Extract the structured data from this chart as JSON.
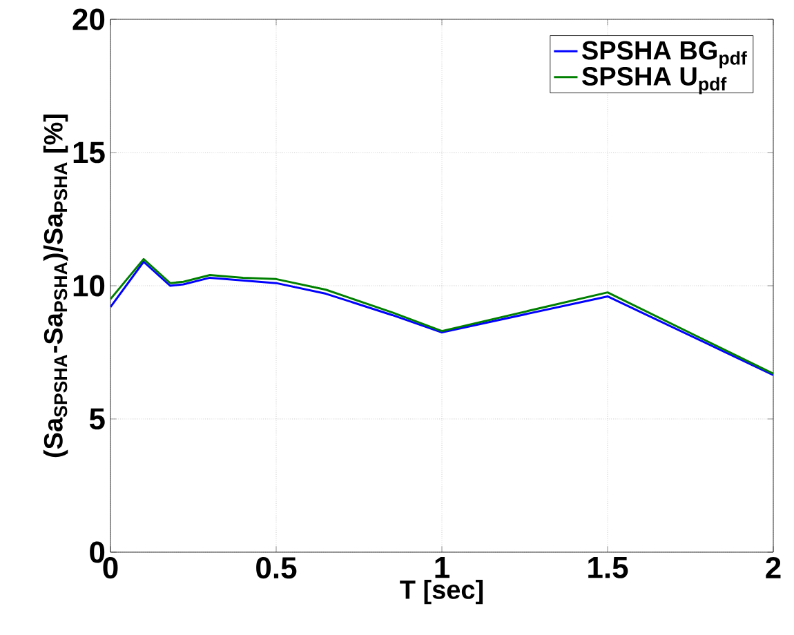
{
  "chart_data": {
    "type": "line",
    "xlabel": "T [sec]",
    "ylabel": "(Sa$_{SPSHA}$-Sa$_{PSHA}$)/Sa$_{PSHA}$ [%]",
    "xlim": [
      0,
      2
    ],
    "ylim": [
      0,
      20
    ],
    "xticks": [
      0,
      0.5,
      1,
      1.5,
      2
    ],
    "yticks": [
      0,
      5,
      10,
      15,
      20
    ],
    "grid": true,
    "legend": "top right",
    "series": [
      {
        "name": "SPSHA BG$_{pdf}$",
        "color": "#0000ff",
        "x": [
          0,
          0.1,
          0.18,
          0.22,
          0.3,
          0.4,
          0.5,
          0.65,
          0.85,
          1.0,
          1.5,
          2.0
        ],
        "values": [
          9.2,
          10.9,
          10.0,
          10.05,
          10.3,
          10.2,
          10.1,
          9.7,
          8.9,
          8.25,
          9.6,
          6.65
        ]
      },
      {
        "name": "SPSHA U$_{pdf}$",
        "color": "#008000",
        "x": [
          0,
          0.1,
          0.18,
          0.22,
          0.3,
          0.4,
          0.5,
          0.65,
          0.85,
          1.0,
          1.5,
          2.0
        ],
        "values": [
          9.5,
          11.0,
          10.1,
          10.15,
          10.4,
          10.3,
          10.25,
          9.85,
          9.0,
          8.3,
          9.75,
          6.7
        ]
      }
    ]
  }
}
